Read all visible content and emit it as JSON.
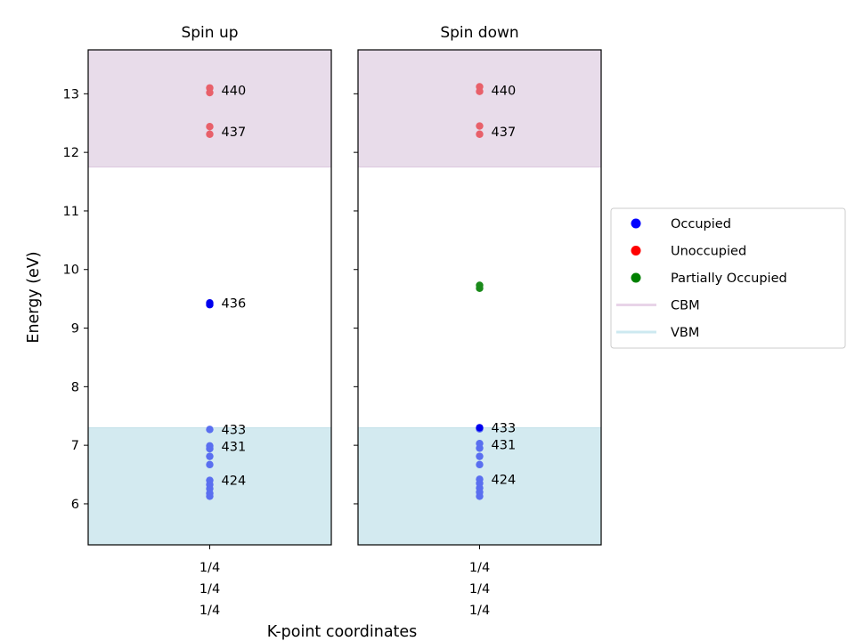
{
  "chart_data": {
    "type": "scatter",
    "ylabel": "Energy (eV)",
    "xlabel": "K-point coordinates",
    "ylim": [
      5.3,
      13.75
    ],
    "yticks": [
      6,
      7,
      8,
      9,
      10,
      11,
      12,
      13
    ],
    "kpoint_label": [
      "1/4",
      "1/4",
      "1/4"
    ],
    "cbm": 11.75,
    "vbm": 7.3,
    "colors": {
      "occupied": "#5a6ff0",
      "occupied_dark": "#0000ee",
      "unoccupied": "#e8606a",
      "partial": "#1a8a1a",
      "cbm_fill": "#e8dcea",
      "vbm_fill": "#d3eaf0",
      "legend_occupied": "#0000ff",
      "legend_unoccupied": "#ff0000",
      "legend_partial": "#008000",
      "legend_cbm": "#e8d4e8",
      "legend_vbm": "#cde9f0"
    },
    "panels": [
      {
        "title": "Spin up",
        "occupied": [
          6.13,
          6.18,
          6.26,
          6.33,
          6.4,
          6.67,
          6.81,
          6.94,
          6.99,
          7.27
        ],
        "occupied_dark": [
          9.4,
          9.43
        ],
        "unoccupied": [
          12.31,
          12.44,
          13.02,
          13.1
        ],
        "partial": [],
        "labels": [
          {
            "text": "440",
            "y": 13.06
          },
          {
            "text": "437",
            "y": 12.35
          },
          {
            "text": "436",
            "y": 9.43
          },
          {
            "text": "433",
            "y": 7.27
          },
          {
            "text": "431",
            "y": 6.98
          },
          {
            "text": "424",
            "y": 6.4
          }
        ]
      },
      {
        "title": "Spin down",
        "occupied": [
          6.13,
          6.2,
          6.27,
          6.35,
          6.42,
          6.67,
          6.81,
          6.95,
          7.03,
          7.28
        ],
        "occupied_dark": [
          7.3
        ],
        "unoccupied": [
          12.31,
          12.45,
          13.04,
          13.12
        ],
        "partial": [
          9.68,
          9.73
        ],
        "labels": [
          {
            "text": "440",
            "y": 13.06
          },
          {
            "text": "437",
            "y": 12.35
          },
          {
            "text": "433",
            "y": 7.3
          },
          {
            "text": "431",
            "y": 7.01
          },
          {
            "text": "424",
            "y": 6.42
          }
        ]
      }
    ],
    "legend": [
      {
        "label": "Occupied",
        "kind": "dot",
        "color_key": "legend_occupied"
      },
      {
        "label": "Unoccupied",
        "kind": "dot",
        "color_key": "legend_unoccupied"
      },
      {
        "label": "Partially Occupied",
        "kind": "dot",
        "color_key": "legend_partial"
      },
      {
        "label": "CBM",
        "kind": "line",
        "color_key": "legend_cbm"
      },
      {
        "label": "VBM",
        "kind": "line",
        "color_key": "legend_vbm"
      }
    ]
  }
}
